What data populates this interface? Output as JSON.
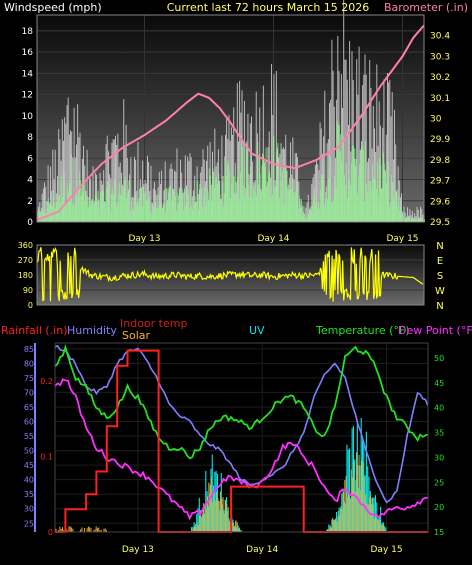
{
  "header": {
    "left_title": "Windspeed (mph)",
    "center_title": "Current last 72 hours March 15 2026",
    "right_title": "Barometer (.in)"
  },
  "colors": {
    "windspeed": "#ffffff",
    "wind_gust_fill": "#d8d8d8",
    "wind_avg": "#7cfc7c",
    "barometer": "#ff7fb0",
    "direction": "#ffff00",
    "rain": "#ff2020",
    "humidity": "#8080ff",
    "indoor": "#d02020",
    "solar": "#ffb030",
    "uv": "#00e8e8",
    "temperature": "#22e022",
    "dewpoint": "#ff30ff",
    "axis_text_white": "#ffffff",
    "axis_text_yellow": "#ffff66"
  },
  "chart_data": [
    {
      "type": "line",
      "title": "",
      "ylabel": "Windspeed (mph)",
      "y2label": "Barometer (.in)",
      "ylim": [
        0,
        19.5
      ],
      "y2lim": [
        29.5,
        30.5
      ],
      "yticks": [
        "0",
        "2",
        "4",
        "6",
        "8",
        "10",
        "12",
        "14",
        "16",
        "18"
      ],
      "y2ticks": [
        "29.5",
        "29.6",
        "29.7",
        "29.8",
        "29.9",
        "30",
        "30.1",
        "30.2",
        "30.3",
        "30.4"
      ],
      "x_tick_labels": [
        "Day 13",
        "Day 14",
        "Day 15"
      ],
      "x_tick_hours": [
        20,
        44,
        68
      ],
      "xlim_hours": [
        0,
        72
      ],
      "series": [
        {
          "name": "Windspeed",
          "x": [
            0,
            2,
            4,
            6,
            8,
            10,
            12,
            14,
            16,
            18,
            20,
            22,
            24,
            26,
            28,
            30,
            32,
            34,
            36,
            38,
            40,
            42,
            44,
            46,
            48,
            50,
            52,
            54,
            56,
            58,
            60,
            62,
            64,
            66,
            68,
            70,
            72
          ],
          "values": [
            1,
            4,
            6,
            11,
            8,
            3,
            6,
            7,
            8,
            5,
            6,
            3,
            4,
            5,
            5,
            5,
            6,
            6,
            7,
            10,
            9,
            10,
            11,
            7,
            5,
            1,
            5,
            10,
            18,
            13,
            12,
            11,
            10,
            9,
            1,
            1,
            1
          ]
        },
        {
          "name": "Wind average",
          "x": [
            0,
            2,
            4,
            6,
            8,
            10,
            12,
            14,
            16,
            18,
            20,
            22,
            24,
            26,
            28,
            30,
            32,
            34,
            36,
            38,
            40,
            42,
            44,
            46,
            48,
            50,
            52,
            54,
            56,
            58,
            60,
            62,
            64,
            66,
            68,
            70,
            72
          ],
          "values": [
            0.5,
            1.5,
            2.5,
            4,
            3,
            1.5,
            2,
            2.5,
            3,
            2,
            2,
            1.5,
            2,
            2,
            2,
            2.5,
            3,
            3.5,
            4,
            5,
            4.5,
            5,
            5,
            3.5,
            2.5,
            0.5,
            2.5,
            4,
            6,
            5,
            4.5,
            4.5,
            4,
            3,
            0.3,
            0.3,
            0.3
          ]
        },
        {
          "name": "Barometer",
          "x": [
            0,
            4,
            8,
            12,
            16,
            20,
            24,
            28,
            30,
            32,
            34,
            36,
            38,
            40,
            44,
            48,
            52,
            56,
            60,
            64,
            68,
            70,
            72
          ],
          "values": [
            29.51,
            29.55,
            29.67,
            29.78,
            29.86,
            29.92,
            29.99,
            30.08,
            30.12,
            30.1,
            30.05,
            29.98,
            29.9,
            29.83,
            29.78,
            29.76,
            29.8,
            29.86,
            30.0,
            30.16,
            30.3,
            30.39,
            30.45
          ]
        }
      ]
    },
    {
      "type": "scatter",
      "title": "",
      "ylabel": "",
      "y2label": "",
      "ylim": [
        0,
        360
      ],
      "yticks": [
        "0",
        "90",
        "180",
        "270",
        "360"
      ],
      "y2ticks": [
        "N",
        "W",
        "S",
        "E",
        "N"
      ],
      "x_tick_labels": [
        "Day 13",
        "Day 14",
        "Day 15"
      ],
      "series": [
        {
          "name": "Wind direction",
          "x": [
            0,
            2,
            4,
            6,
            8,
            10,
            12,
            14,
            16,
            18,
            20,
            22,
            24,
            26,
            28,
            30,
            32,
            34,
            36,
            38,
            40,
            42,
            44,
            46,
            48,
            50,
            52,
            54,
            56,
            58,
            60,
            62,
            64,
            66,
            68,
            70,
            72
          ],
          "values": [
            40,
            260,
            340,
            20,
            230,
            180,
            170,
            165,
            175,
            180,
            185,
            170,
            175,
            180,
            170,
            175,
            170,
            175,
            180,
            185,
            175,
            180,
            170,
            175,
            180,
            175,
            180,
            250,
            60,
            320,
            40,
            260,
            180,
            175,
            170,
            165,
            120
          ]
        }
      ]
    },
    {
      "type": "line",
      "title": "",
      "legend": [
        "Rainfall (.in)",
        "Humidity",
        "Indoor temp",
        "Solar",
        "UV",
        "Temperature (°F)",
        "Dew Point (°F)"
      ],
      "ylim": [
        22,
        87
      ],
      "yticks": [
        "25",
        "30",
        "35",
        "40",
        "45",
        "50",
        "55",
        "60",
        "65",
        "70",
        "75",
        "80",
        "85"
      ],
      "rain_ticks": [
        "0",
        "0.1",
        "0.2"
      ],
      "rain_lim": [
        0,
        0.25
      ],
      "y2lim": [
        15,
        53
      ],
      "y2ticks": [
        "15",
        "20",
        "25",
        "30",
        "35",
        "40",
        "45",
        "50"
      ],
      "x_tick_labels": [
        "Day 13",
        "Day 14",
        "Day 15"
      ],
      "series": [
        {
          "name": "Humidity",
          "x": [
            0,
            2,
            4,
            6,
            8,
            10,
            12,
            14,
            16,
            18,
            20,
            22,
            24,
            26,
            28,
            30,
            32,
            34,
            36,
            38,
            40,
            42,
            44,
            46,
            48,
            50,
            52,
            54,
            56,
            58,
            60,
            62,
            64,
            66,
            68,
            70,
            72
          ],
          "values": [
            86,
            84,
            80,
            72,
            70,
            72,
            80,
            84,
            85,
            80,
            74,
            66,
            62,
            60,
            55,
            52,
            50,
            45,
            40,
            38,
            40,
            42,
            44,
            50,
            56,
            68,
            76,
            80,
            75,
            62,
            50,
            40,
            32,
            36,
            55,
            70,
            66
          ]
        },
        {
          "name": "Rainfall",
          "x": [
            0,
            2,
            4,
            6,
            8,
            10,
            12,
            14,
            16,
            18,
            20,
            22,
            24,
            26,
            28,
            30,
            32,
            34,
            36,
            38,
            40,
            42,
            44,
            46,
            48,
            50,
            52,
            54,
            56,
            58,
            60,
            62,
            64,
            66,
            68,
            70,
            72
          ],
          "values": [
            0,
            0.03,
            0.03,
            0.05,
            0.08,
            0.14,
            0.22,
            0.24,
            0.24,
            0.24,
            0,
            0,
            0,
            0,
            0,
            0,
            0,
            0.06,
            0.06,
            0.06,
            0.06,
            0.06,
            0.06,
            0.06,
            0,
            0,
            0,
            0,
            0,
            0,
            0,
            0,
            0,
            0,
            0,
            0,
            0
          ]
        },
        {
          "name": "Temperature",
          "x": [
            0,
            2,
            4,
            6,
            8,
            10,
            12,
            14,
            16,
            18,
            20,
            22,
            24,
            26,
            28,
            30,
            32,
            34,
            36,
            38,
            40,
            42,
            44,
            46,
            48,
            50,
            52,
            54,
            56,
            58,
            60,
            62,
            64,
            66,
            68,
            70,
            72
          ],
          "values": [
            48,
            52,
            46,
            44,
            40,
            38,
            40,
            44,
            42,
            38,
            34,
            32,
            32,
            30,
            32,
            36,
            38,
            38,
            37,
            36,
            38,
            40,
            42,
            42,
            40,
            36,
            34,
            40,
            50,
            52,
            51,
            48,
            42,
            38,
            36,
            34,
            35
          ]
        },
        {
          "name": "Dew Point",
          "x": [
            0,
            2,
            4,
            6,
            8,
            10,
            12,
            14,
            16,
            18,
            20,
            22,
            24,
            26,
            28,
            30,
            32,
            34,
            36,
            38,
            40,
            42,
            44,
            46,
            48,
            50,
            52,
            54,
            56,
            58,
            60,
            62,
            64,
            66,
            68,
            70,
            72
          ],
          "values": [
            44,
            46,
            42,
            36,
            32,
            30,
            29,
            28,
            27,
            26,
            24,
            22,
            20,
            18,
            19,
            22,
            25,
            26,
            25,
            24,
            25,
            28,
            32,
            33,
            30,
            28,
            24,
            21,
            24,
            22,
            20,
            18,
            19,
            20,
            20,
            21,
            22
          ]
        },
        {
          "name": "UV",
          "x": [
            0,
            6,
            12,
            18,
            24,
            26,
            28,
            30,
            32,
            34,
            36,
            48,
            52,
            54,
            56,
            58,
            60,
            62,
            64,
            72
          ],
          "values": [
            0,
            0,
            0,
            0,
            0,
            0,
            2,
            4,
            3,
            1,
            0,
            0,
            0,
            1,
            4,
            6,
            5,
            2,
            0,
            0
          ]
        },
        {
          "name": "Solar",
          "x": [
            0,
            6,
            12,
            18,
            24,
            26,
            28,
            30,
            32,
            34,
            36,
            48,
            52,
            54,
            56,
            58,
            60,
            62,
            64,
            72
          ],
          "values": [
            0,
            0,
            0,
            0,
            0,
            0,
            1,
            3,
            2,
            1,
            0,
            0,
            0,
            1,
            3,
            4,
            3,
            1,
            0,
            0
          ]
        }
      ]
    }
  ]
}
